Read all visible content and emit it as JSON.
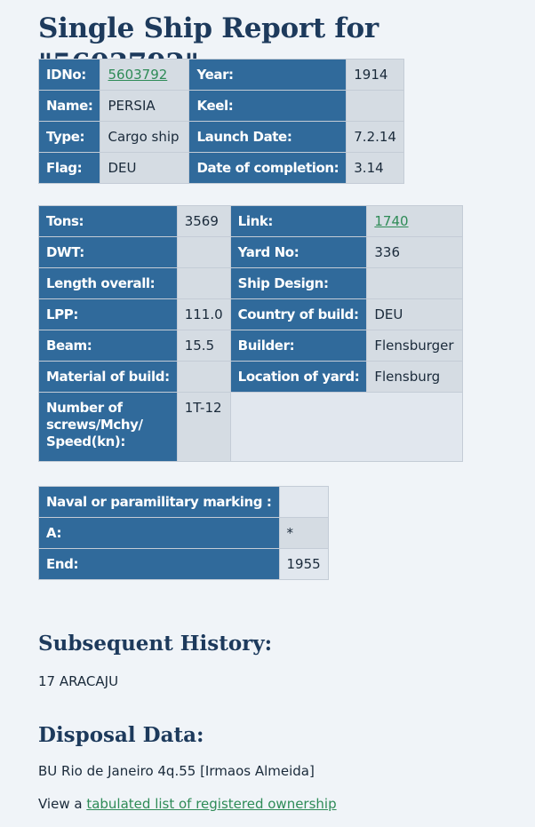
{
  "title": "Single Ship Report for \"5603792\"",
  "info1": {
    "idno_label": "IDNo:",
    "idno_value": "5603792",
    "year_label": "Year:",
    "year_value": "1914",
    "name_label": "Name:",
    "name_value": "PERSIA",
    "keel_label": "Keel:",
    "keel_value": "",
    "type_label": "Type:",
    "type_value": "Cargo ship",
    "launch_label": "Launch Date:",
    "launch_value": "7.2.14",
    "flag_label": "Flag:",
    "flag_value": "DEU",
    "completion_label": "Date of completion:",
    "completion_value": "3.14"
  },
  "info2": {
    "tons_label": "Tons:",
    "tons_value": "3569",
    "link_label": "Link:",
    "link_value": "1740",
    "dwt_label": "DWT:",
    "dwt_value": "",
    "yard_label": "Yard No:",
    "yard_value": "336",
    "length_label": "Length overall:",
    "length_value": "",
    "design_label": "Ship Design:",
    "design_value": "",
    "lpp_label": "LPP:",
    "lpp_value": "111.0",
    "country_label": "Country of build:",
    "country_value": "DEU",
    "beam_label": "Beam:",
    "beam_value": "15.5",
    "builder_label": "Builder:",
    "builder_value": "Flensburger",
    "material_label": "Material of build:",
    "material_value": "",
    "location_label": "Location of yard:",
    "location_value": "Flensburg",
    "screws_label": "Number of screws/Mchy/ Speed(kn):",
    "screws_value": "1T-12"
  },
  "info3": {
    "naval_label": "Naval or paramilitary marking :",
    "naval_value": "",
    "a_label": "A:",
    "a_value": "*",
    "end_label": "End:",
    "end_value": "1955"
  },
  "history": {
    "heading": "Subsequent History:",
    "text": "17 ARACAJU"
  },
  "disposal": {
    "heading": "Disposal Data:",
    "text": "BU Rio de Janeiro 4q.55 [Irmaos Almeida]",
    "view_prefix": "View a ",
    "view_link": "tabulated list of registered ownership"
  },
  "colors": {
    "header_cell": "#306a9b",
    "value_cell": "#d5dce3",
    "link": "#2e8b57",
    "heading": "#1d3a5c"
  }
}
